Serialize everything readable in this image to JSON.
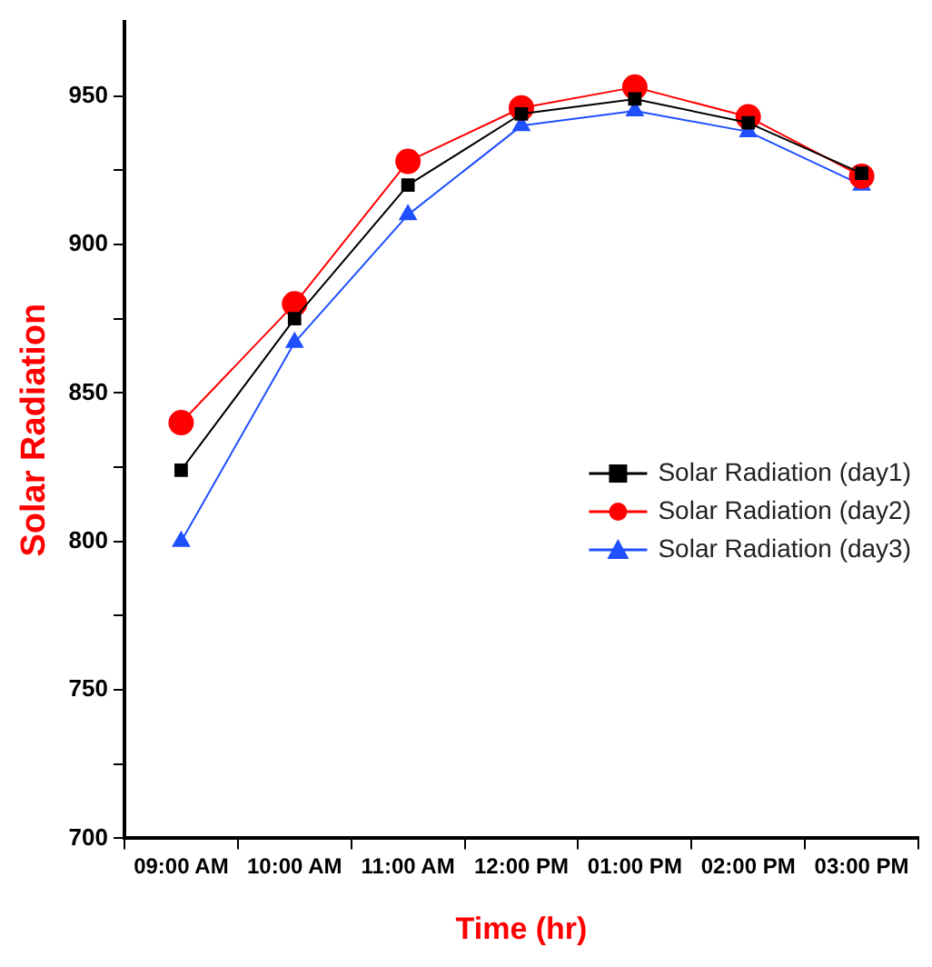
{
  "chart_data": {
    "type": "line",
    "xlabel": "Time (hr)",
    "ylabel": "Solar Radiation",
    "categories": [
      "09:00 AM",
      "10:00 AM",
      "11:00 AM",
      "12:00 PM",
      "01:00 PM",
      "02:00 PM",
      "03:00 PM"
    ],
    "series": [
      {
        "name": "Solar Radiation (day1)",
        "color": "#000000",
        "marker": "square",
        "values": [
          824,
          875,
          920,
          944,
          949,
          941,
          924
        ]
      },
      {
        "name": "Solar Radiation (day2)",
        "color": "#ff0000",
        "marker": "circle",
        "values": [
          840,
          880,
          928,
          946,
          953,
          943,
          923
        ]
      },
      {
        "name": "Solar Radiation (day3)",
        "color": "#1f4fff",
        "marker": "triangle",
        "values": [
          800,
          867,
          910,
          940,
          945,
          938,
          920
        ]
      }
    ],
    "ylim": [
      700,
      975
    ],
    "yticks": [
      700,
      {
        "value": 725,
        "label": null
      },
      750,
      {
        "value": 775,
        "label": null
      },
      800,
      {
        "value": 825,
        "label": null
      },
      850,
      {
        "value": 875,
        "label": null
      },
      900,
      {
        "value": 925,
        "label": null
      },
      950
    ],
    "grid": false,
    "legend": "right",
    "line_style": "solid"
  }
}
